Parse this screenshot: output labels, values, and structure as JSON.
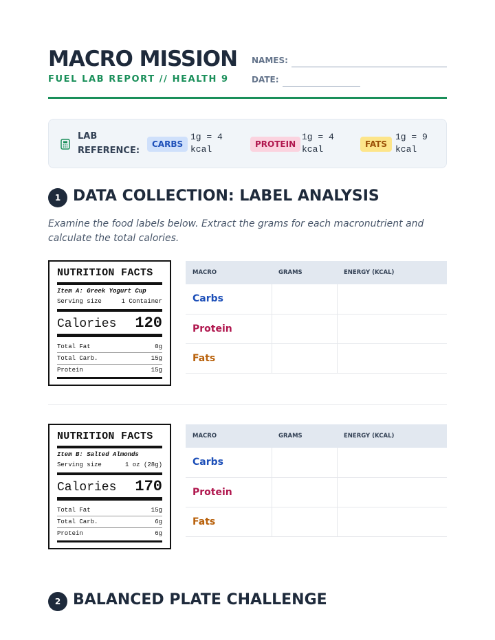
{
  "header": {
    "title": "MACRO MISSION",
    "subtitle": "FUEL LAB REPORT // HEALTH 9",
    "names_label": "NAMES:",
    "date_label": "DATE:"
  },
  "reference": {
    "label": "LAB REFERENCE:",
    "items": [
      {
        "tag": "CARBS",
        "value": "1g = 4 kcal"
      },
      {
        "tag": "PROTEIN",
        "value": "1g = 4 kcal"
      },
      {
        "tag": "FATS",
        "value": "1g = 9 kcal"
      }
    ]
  },
  "section1": {
    "number": 1,
    "title": "DATA COLLECTION: LABEL ANALYSIS",
    "instructions": "Examine the food labels below. Extract the grams for each macronutrient and calculate the total calories."
  },
  "items": [
    {
      "facts_title": "NUTRITION FACTS",
      "name": "Item A: Greek Yogurt Cup",
      "serving_label": "Serving size",
      "serving": "1 Container",
      "calories_label": "Calories",
      "calories": 120,
      "rows": [
        {
          "label": "Total Fat",
          "value": "0g"
        },
        {
          "label": "Total Carb.",
          "value": "15g"
        },
        {
          "label": "Protein",
          "value": "15g"
        }
      ],
      "table": {
        "headers": [
          "MACRO",
          "GRAMS",
          "ENERGY (KCAL)"
        ],
        "rows": [
          "Carbs",
          "Protein",
          "Fats"
        ]
      }
    },
    {
      "facts_title": "NUTRITION FACTS",
      "name": "Item B: Salted Almonds",
      "serving_label": "Serving size",
      "serving": "1 oz (28g)",
      "calories_label": "Calories",
      "calories": 170,
      "rows": [
        {
          "label": "Total Fat",
          "value": "15g"
        },
        {
          "label": "Total Carb.",
          "value": "6g"
        },
        {
          "label": "Protein",
          "value": "6g"
        }
      ],
      "table": {
        "headers": [
          "MACRO",
          "GRAMS",
          "ENERGY (KCAL)"
        ],
        "rows": [
          "Carbs",
          "Protein",
          "Fats"
        ]
      }
    }
  ],
  "section2": {
    "number": 2,
    "title": "BALANCED PLATE CHALLENGE"
  }
}
